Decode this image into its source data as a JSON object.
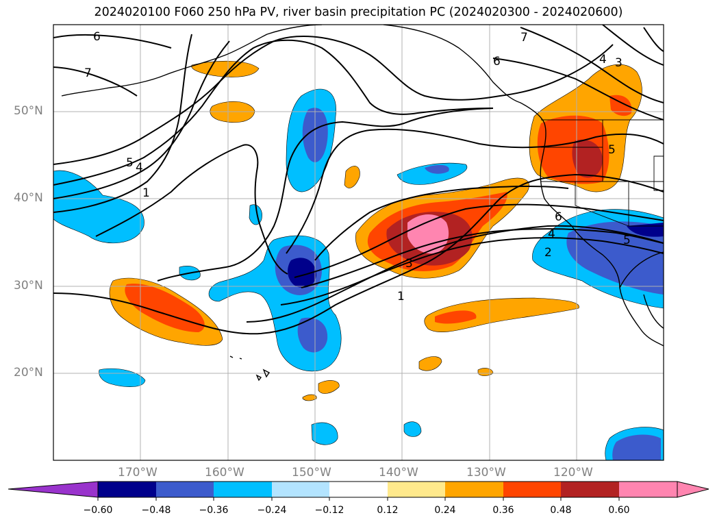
{
  "title": "2024020100 F060 250 hPa PV, river basin precipitation PC (2024020300 - 2024020600)",
  "map": {
    "lon_range": [
      -180,
      -110
    ],
    "lat_range": [
      10,
      60
    ],
    "lat_labels": [
      "50°N",
      "40°N",
      "30°N",
      "20°N"
    ],
    "lon_labels": [
      "170°W",
      "160°W",
      "150°W",
      "140°W",
      "130°W",
      "120°W"
    ],
    "contour_labels": [
      "6",
      "7",
      "6",
      "7",
      "5",
      "4",
      "1",
      "4",
      "3",
      "5",
      "6",
      "4",
      "2",
      "3",
      "1",
      "5"
    ],
    "gridline_color": "#b0b0b0"
  },
  "colorbar": {
    "tick_labels": [
      "−0.60",
      "−0.48",
      "−0.36",
      "−0.24",
      "−0.12",
      "0.12",
      "0.24",
      "0.36",
      "0.48",
      "0.60"
    ],
    "colors": [
      "#9933cc",
      "#00008b",
      "#3c5bcc",
      "#00bfff",
      "#b3e4ff",
      "#ffffff",
      "#ffe98c",
      "#ffa500",
      "#ff4500",
      "#b22222",
      "#ff85b0"
    ]
  }
}
